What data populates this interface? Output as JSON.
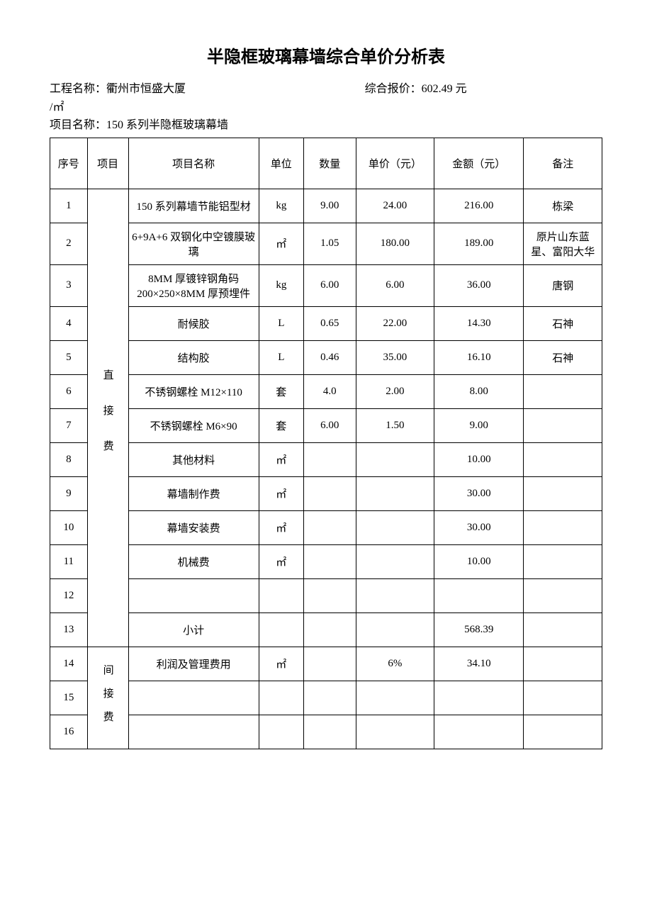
{
  "title": "半隐框玻璃幕墙综合单价分析表",
  "header": {
    "project_name_label": "工程名称：",
    "project_name": "衢州市恒盛大厦",
    "unit_suffix": "/㎡",
    "price_label": "综合报价：",
    "price_value": "602.49 元",
    "item_name_label": "项目名称：",
    "item_name": "150 系列半隐框玻璃幕墙"
  },
  "columns": {
    "seq": "序号",
    "cat": "项目",
    "name": "项目名称",
    "unit": "单位",
    "qty": "数量",
    "price": "单价（元）",
    "amount": "金额（元）",
    "remark": "备注"
  },
  "category_labels": {
    "direct": "直接费",
    "indirect": "间接费"
  },
  "rows": [
    {
      "seq": "1",
      "name": "150 系列幕墙节能铝型材",
      "unit": "kg",
      "qty": "9.00",
      "price": "24.00",
      "amount": "216.00",
      "remark": "栋梁"
    },
    {
      "seq": "2",
      "name": "6+9A+6 双钢化中空镀膜玻璃",
      "unit": "㎡",
      "qty": "1.05",
      "price": "180.00",
      "amount": "189.00",
      "remark": "原片山东蓝星、富阳大华"
    },
    {
      "seq": "3",
      "name": "8MM 厚镀锌钢角码 200×250×8MM 厚预埋件",
      "unit": "kg",
      "qty": "6.00",
      "price": "6.00",
      "amount": "36.00",
      "remark": "唐钢"
    },
    {
      "seq": "4",
      "name": "耐候胶",
      "unit": "L",
      "qty": "0.65",
      "price": "22.00",
      "amount": "14.30",
      "remark": "石神"
    },
    {
      "seq": "5",
      "name": "结构胶",
      "unit": "L",
      "qty": "0.46",
      "price": "35.00",
      "amount": "16.10",
      "remark": "石神"
    },
    {
      "seq": "6",
      "name": "不锈钢螺栓 M12×110",
      "unit": "套",
      "qty": "4.0",
      "price": "2.00",
      "amount": "8.00",
      "remark": ""
    },
    {
      "seq": "7",
      "name": "不锈钢螺栓 M6×90",
      "unit": "套",
      "qty": "6.00",
      "price": "1.50",
      "amount": "9.00",
      "remark": ""
    },
    {
      "seq": "8",
      "name": "其他材料",
      "unit": "㎡",
      "qty": "",
      "price": "",
      "amount": "10.00",
      "remark": ""
    },
    {
      "seq": "9",
      "name": "幕墙制作费",
      "unit": "㎡",
      "qty": "",
      "price": "",
      "amount": "30.00",
      "remark": ""
    },
    {
      "seq": "10",
      "name": "幕墙安装费",
      "unit": "㎡",
      "qty": "",
      "price": "",
      "amount": "30.00",
      "remark": ""
    },
    {
      "seq": "11",
      "name": "机械费",
      "unit": "㎡",
      "qty": "",
      "price": "",
      "amount": "10.00",
      "remark": ""
    },
    {
      "seq": "12",
      "name": "",
      "unit": "",
      "qty": "",
      "price": "",
      "amount": "",
      "remark": ""
    },
    {
      "seq": "13",
      "name": "小计",
      "unit": "",
      "qty": "",
      "price": "",
      "amount": "568.39",
      "remark": ""
    },
    {
      "seq": "14",
      "name": "利润及管理费用",
      "unit": "㎡",
      "qty": "",
      "price": "6%",
      "amount": "34.10",
      "remark": ""
    },
    {
      "seq": "15",
      "name": "",
      "unit": "",
      "qty": "",
      "price": "",
      "amount": "",
      "remark": ""
    },
    {
      "seq": "16",
      "name": "",
      "unit": "",
      "qty": "",
      "price": "",
      "amount": "",
      "remark": ""
    }
  ]
}
